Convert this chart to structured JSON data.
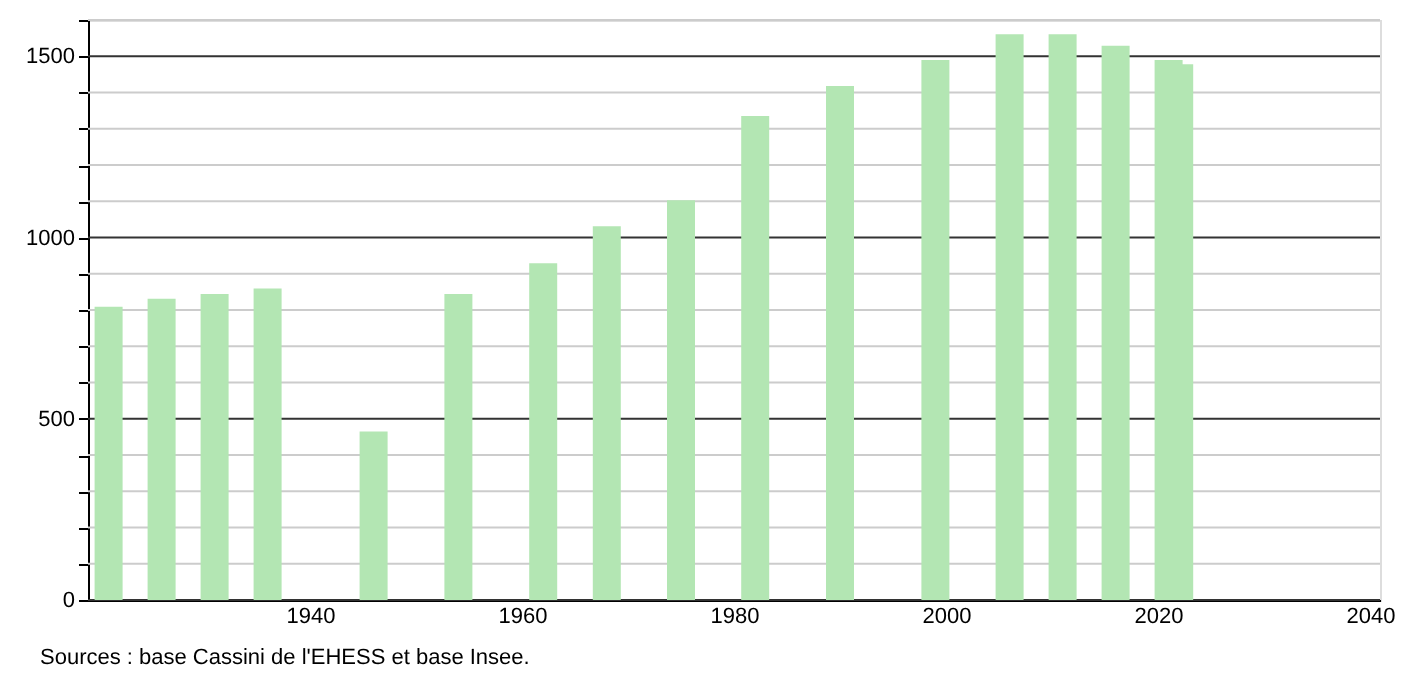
{
  "chart_data": {
    "type": "bar",
    "x": [
      1921,
      1926,
      1931,
      1936,
      1946,
      1954,
      1962,
      1968,
      1975,
      1982,
      1990,
      1999,
      2006,
      2011,
      2016,
      2021,
      2022
    ],
    "values": [
      809,
      831,
      844,
      859,
      465,
      844,
      929,
      1031,
      1103,
      1335,
      1418,
      1490,
      1561,
      1561,
      1529,
      1490,
      1478
    ],
    "color": "#b3e6b3",
    "xlim": [
      1920,
      2040
    ],
    "xticks": [
      1940,
      1960,
      1980,
      2000,
      2020,
      2040
    ],
    "ylim": [
      0,
      1600
    ],
    "yticks": [
      0,
      {
        "value": 100,
        "label": null
      },
      {
        "value": 200,
        "label": null
      },
      {
        "value": 300,
        "label": null
      },
      {
        "value": 400,
        "label": null
      },
      500,
      {
        "value": 600,
        "label": null
      },
      {
        "value": 700,
        "label": null
      },
      {
        "value": 800,
        "label": null
      },
      {
        "value": 900,
        "label": null
      },
      1000,
      {
        "value": 1100,
        "label": null
      },
      {
        "value": 1200,
        "label": null
      },
      {
        "value": 1300,
        "label": null
      },
      {
        "value": 1400,
        "label": null
      },
      1500,
      {
        "value": 1600,
        "label": null
      }
    ],
    "grid": "y",
    "annotations": [
      "Sources : base Cassini de l'EHESS et base Insee."
    ]
  }
}
